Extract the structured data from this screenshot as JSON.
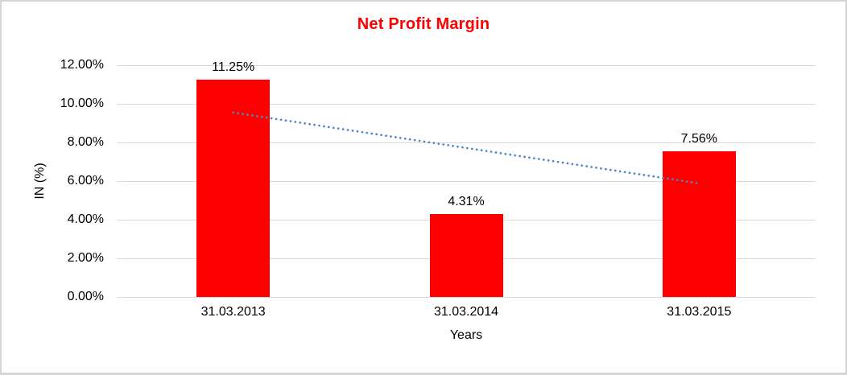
{
  "chart_data": {
    "type": "bar",
    "title": "Net Profit Margin",
    "title_color": "#ff0000",
    "categories": [
      "31.03.2013",
      "31.03.2014",
      "31.03.2015"
    ],
    "values": [
      11.25,
      4.31,
      7.56
    ],
    "data_labels": [
      "11.25%",
      "4.31%",
      "7.56%"
    ],
    "xlabel": "Years",
    "ylabel": "IN (%)",
    "ylim": [
      0,
      12
    ],
    "yticks": [
      {
        "value": 0,
        "label": "0.00%"
      },
      {
        "value": 2,
        "label": "2.00%"
      },
      {
        "value": 4,
        "label": "4.00%"
      },
      {
        "value": 6,
        "label": "6.00%"
      },
      {
        "value": 8,
        "label": "8.00%"
      },
      {
        "value": 10,
        "label": "10.00%"
      },
      {
        "value": 12,
        "label": "12.00%"
      }
    ],
    "grid": true,
    "grid_color": "#d9d9d9",
    "legend": "none",
    "bar_color": "#ff0000",
    "trendline": {
      "type": "linear",
      "style": "dotted",
      "color": "#4e86c8",
      "start_value": 9.55,
      "end_value": 5.88
    }
  }
}
